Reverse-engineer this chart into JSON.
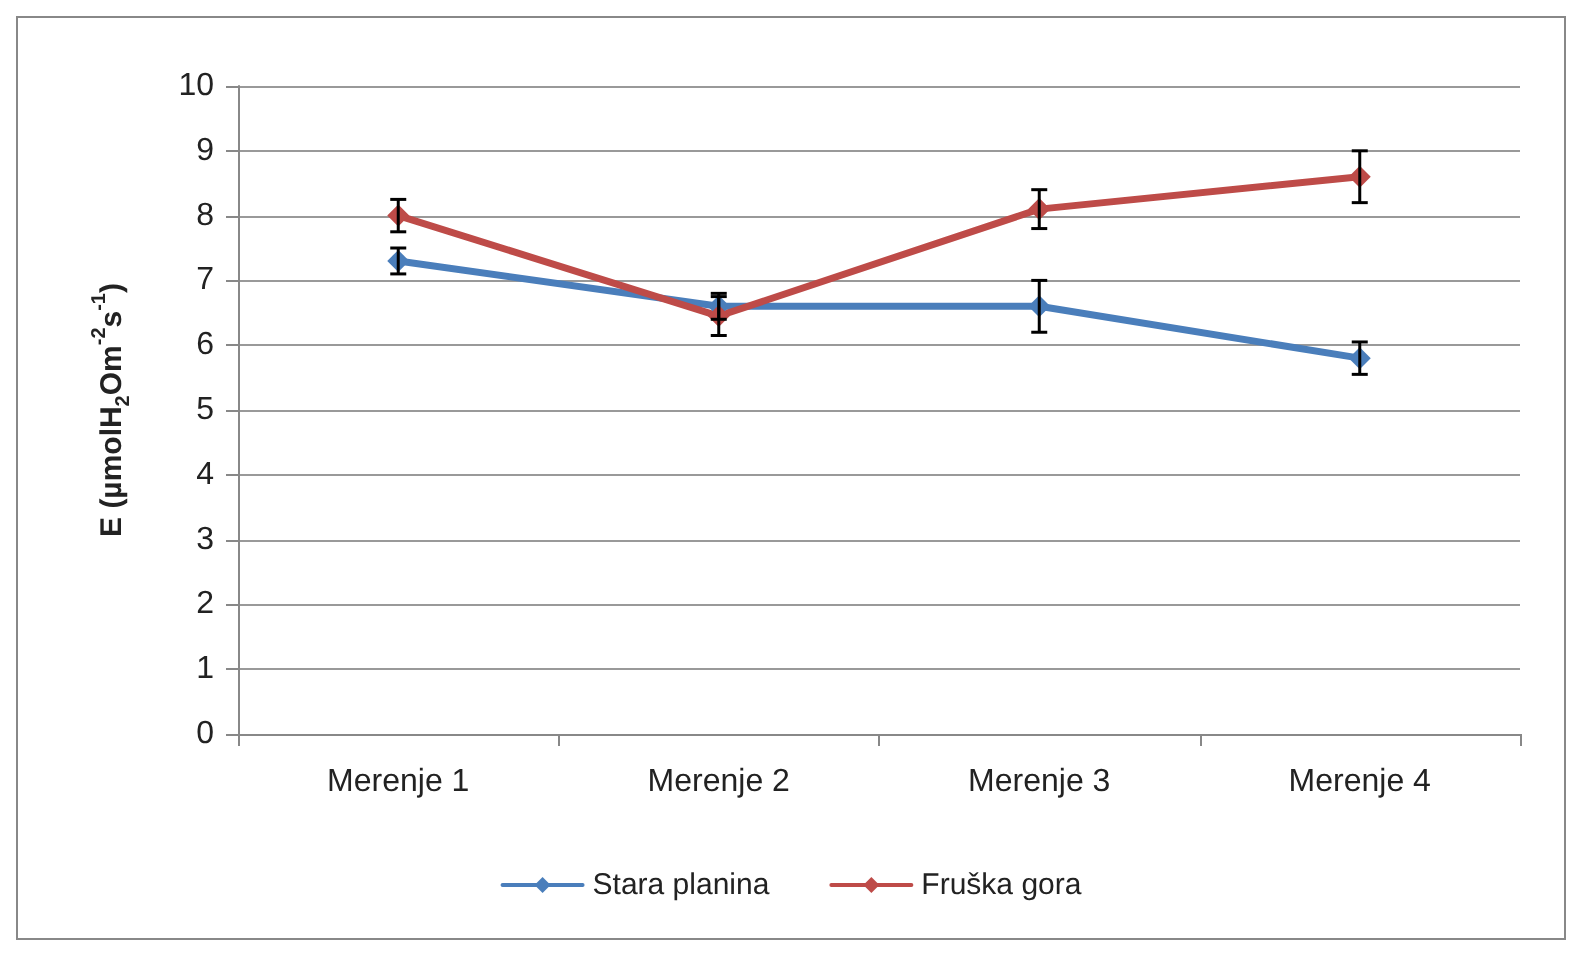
{
  "chart_data": {
    "type": "line",
    "ylabel": "E (µmolH$_{2}$Om$^{-2}$s$^{-1}$)",
    "categories": [
      "Merenje 1",
      "Merenje 2",
      "Merenje 3",
      "Merenje 4"
    ],
    "series": [
      {
        "name": "Stara planina",
        "color": "#4a7ebb",
        "values": [
          7.3,
          6.6,
          6.6,
          5.8
        ],
        "errors": [
          0.2,
          0.2,
          0.4,
          0.25
        ]
      },
      {
        "name": "Fruška gora",
        "color": "#be4b48",
        "values": [
          8.0,
          6.45,
          8.1,
          8.6
        ],
        "errors": [
          0.25,
          0.3,
          0.3,
          0.4
        ]
      }
    ],
    "ylim": [
      0,
      10
    ],
    "yticks": [
      0,
      1,
      2,
      3,
      4,
      5,
      6,
      7,
      8,
      9,
      10
    ],
    "grid": "y",
    "legend": "bottom",
    "marker": "diamond",
    "line_style": "solid"
  }
}
